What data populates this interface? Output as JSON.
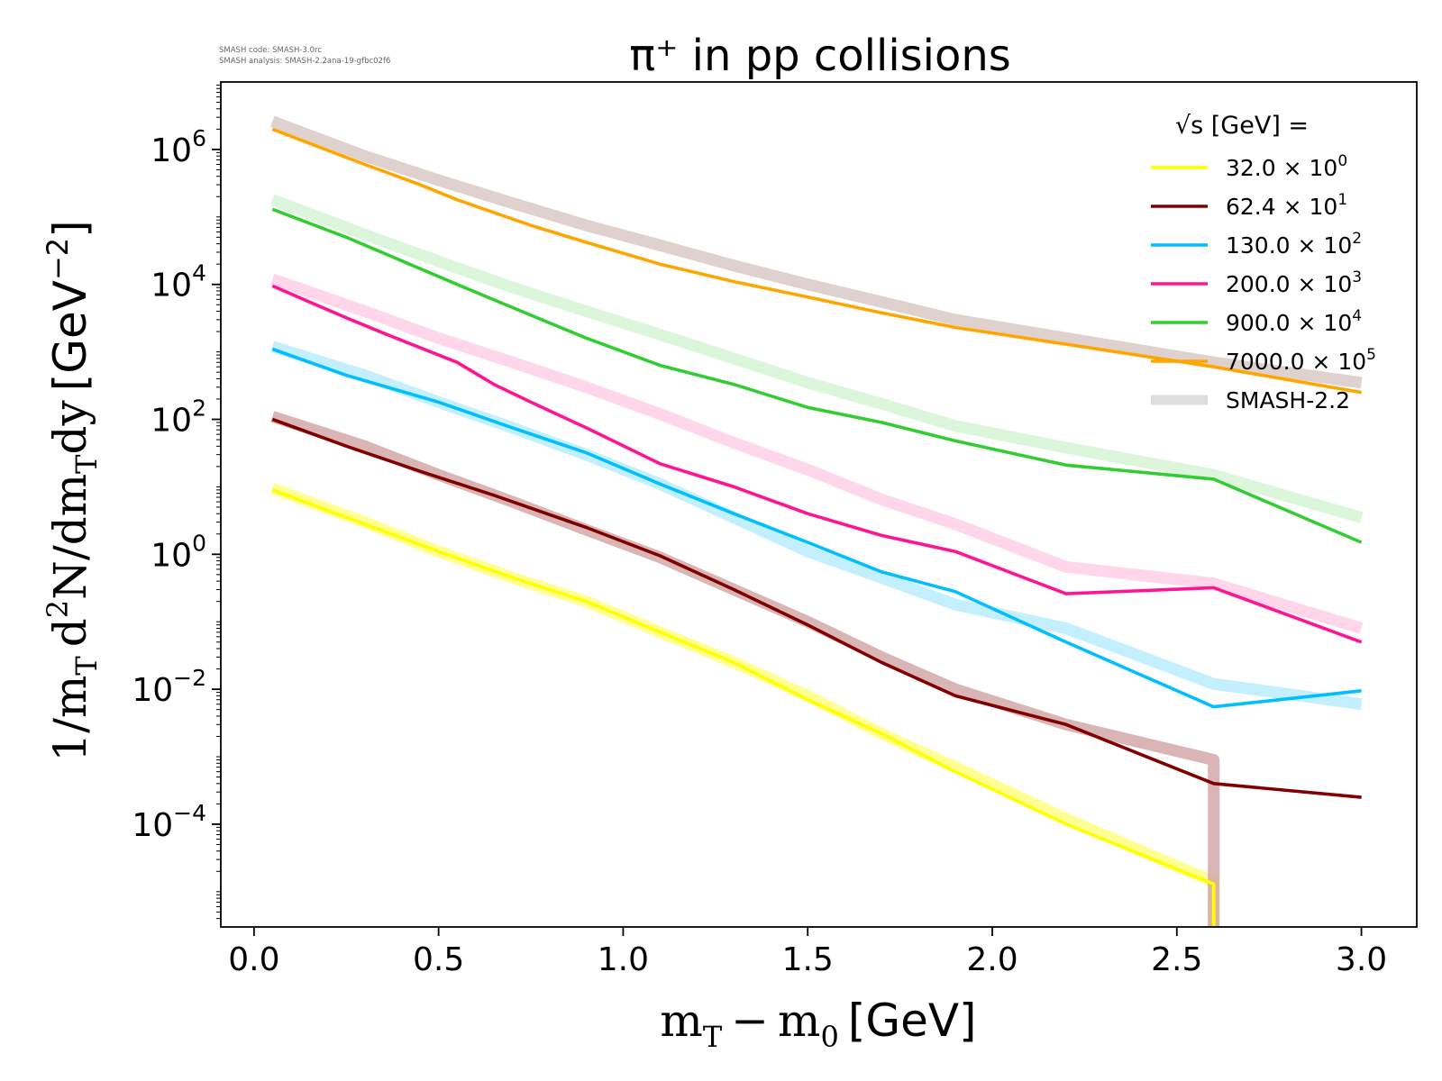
{
  "meta": {
    "code_line": "SMASH code:      SMASH-3.0rc",
    "analysis_line": "SMASH analysis: SMASH-2.2ana-19-gfbc02f6"
  },
  "chart_data": {
    "type": "line",
    "title": "π⁺ in pp collisions",
    "xlabel": "m_T − m_0 [GeV]",
    "ylabel": "1/m_T d²N/dm_Tdy [GeV⁻²]",
    "yscale": "log",
    "xlim": [
      -0.09,
      3.15
    ],
    "ylim": [
      3e-06,
      10000000.0
    ],
    "x_ticks": [
      "0.0",
      "0.5",
      "1.0",
      "1.5",
      "2.0",
      "2.5",
      "3.0"
    ],
    "y_tick_exponents": [
      "6",
      "4",
      "2",
      "0",
      "−2",
      "−4"
    ],
    "legend": {
      "position": "top-right",
      "title": "√s [GeV] =",
      "entries": [
        {
          "mantissa": "32.0",
          "exponent": "0",
          "color": "#ffff00"
        },
        {
          "mantissa": "62.4",
          "exponent": "1",
          "color": "#800000"
        },
        {
          "mantissa": "130.0",
          "exponent": "2",
          "color": "#00bfff"
        },
        {
          "mantissa": "200.0",
          "exponent": "3",
          "color": "#ff1493"
        },
        {
          "mantissa": "900.0",
          "exponent": "4",
          "color": "#32cd32"
        },
        {
          "mantissa": "7000.0",
          "exponent": "5",
          "color": "#ffa500"
        }
      ],
      "reference_label": "SMASH-2.2",
      "reference_color": "#dddddd"
    },
    "series": [
      {
        "color": "#ffff00",
        "x": [
          0.05,
          0.3,
          0.5,
          0.7,
          0.9,
          1.1,
          1.3,
          1.5,
          1.7,
          1.9,
          2.2,
          2.6,
          2.6
        ],
        "y": [
          9,
          2.8,
          1.1,
          0.45,
          0.2,
          0.07,
          0.025,
          0.007,
          0.0022,
          0.0006,
          0.0001,
          1.3e-05,
          1e-06
        ]
      },
      {
        "color": "#800000",
        "x": [
          0.05,
          0.25,
          0.45,
          0.65,
          0.9,
          1.1,
          1.3,
          1.5,
          1.7,
          1.9,
          2.2,
          2.6,
          3.0
        ],
        "y": [
          100,
          40,
          17,
          7.5,
          2.5,
          0.95,
          0.3,
          0.09,
          0.025,
          0.008,
          0.003,
          0.0004,
          0.00025
        ]
      },
      {
        "color": "#00bfff",
        "x": [
          0.05,
          0.25,
          0.5,
          0.7,
          0.9,
          1.1,
          1.3,
          1.5,
          1.7,
          1.9,
          2.2,
          2.6,
          3.0
        ],
        "y": [
          1100,
          450,
          180,
          75,
          32,
          11,
          4,
          1.5,
          0.55,
          0.28,
          0.05,
          0.0055,
          0.0095
        ]
      },
      {
        "color": "#ff1493",
        "x": [
          0.05,
          0.15,
          0.25,
          0.35,
          0.55,
          0.65,
          0.75,
          0.9,
          1.1,
          1.3,
          1.5,
          1.7,
          1.9,
          2.2,
          2.6,
          3.0
        ],
        "y": [
          9500,
          5500,
          3200,
          1900,
          700,
          330,
          180,
          75,
          22,
          10,
          4,
          1.9,
          1.1,
          0.26,
          0.32,
          0.05
        ]
      },
      {
        "color": "#32cd32",
        "x": [
          0.05,
          0.25,
          0.55,
          0.75,
          0.9,
          1.1,
          1.3,
          1.5,
          1.7,
          1.9,
          2.2,
          2.6,
          3.0
        ],
        "y": [
          130000,
          50000,
          10000,
          3500,
          1600,
          630,
          330,
          150,
          90,
          48,
          21,
          13,
          1.5
        ]
      },
      {
        "color": "#ffa500",
        "x": [
          0.05,
          0.3,
          0.45,
          0.55,
          0.75,
          0.9,
          1.1,
          1.3,
          1.5,
          1.7,
          1.9,
          2.2,
          2.6,
          3.0
        ],
        "y": [
          2000000,
          600000,
          300000,
          180000,
          75000,
          42000,
          20000,
          11000,
          6500,
          3800,
          2300,
          1300,
          600,
          250
        ]
      }
    ],
    "reference_series": [
      {
        "color": "#ffff80",
        "x": [
          0.05,
          0.3,
          0.5,
          0.7,
          0.9,
          1.1,
          1.3,
          1.5,
          1.7,
          1.9,
          2.2,
          2.6,
          2.6
        ],
        "y": [
          9.5,
          3,
          1.1,
          0.45,
          0.2,
          0.07,
          0.025,
          0.008,
          0.0022,
          0.0007,
          0.00012,
          1.4e-05,
          1e-06
        ]
      },
      {
        "color": "#d4a8a8",
        "x": [
          0.05,
          0.3,
          0.5,
          0.7,
          0.9,
          1.1,
          1.3,
          1.5,
          1.7,
          1.9,
          2.2,
          2.6,
          2.6
        ],
        "y": [
          110,
          40,
          15,
          6,
          2.3,
          0.9,
          0.3,
          0.1,
          0.03,
          0.01,
          0.003,
          0.0009,
          1e-06
        ]
      },
      {
        "color": "#b8ecff",
        "x": [
          0.05,
          0.3,
          0.5,
          0.7,
          0.9,
          1.1,
          1.3,
          1.5,
          1.7,
          1.9,
          2.2,
          2.6,
          3.0
        ],
        "y": [
          1200,
          450,
          180,
          75,
          30,
          11,
          3.5,
          1.1,
          0.45,
          0.18,
          0.08,
          0.012,
          0.006
        ]
      },
      {
        "color": "#ffcfe6",
        "x": [
          0.05,
          0.3,
          0.5,
          0.7,
          0.9,
          1.1,
          1.3,
          1.5,
          1.7,
          1.9,
          2.2,
          2.6,
          3.0
        ],
        "y": [
          12000,
          4000,
          1600,
          700,
          300,
          120,
          45,
          18,
          6.5,
          2.8,
          0.65,
          0.37,
          0.08
        ]
      },
      {
        "color": "#d6f5d6",
        "x": [
          0.05,
          0.3,
          0.5,
          0.7,
          0.9,
          1.1,
          1.3,
          1.5,
          1.7,
          1.9,
          2.2,
          2.6,
          3.0
        ],
        "y": [
          180000,
          55000,
          22000,
          9000,
          4000,
          1800,
          800,
          350,
          170,
          80,
          38,
          15,
          3.5
        ]
      },
      {
        "color": "#d9c9c4",
        "x": [
          0.05,
          0.3,
          0.5,
          0.7,
          0.9,
          1.1,
          1.3,
          1.5,
          1.7,
          1.9,
          2.2,
          2.6,
          3.0
        ],
        "y": [
          2600000,
          800000,
          350000,
          160000,
          75000,
          38000,
          19000,
          10000,
          5500,
          3000,
          1600,
          700,
          350
        ]
      }
    ]
  }
}
